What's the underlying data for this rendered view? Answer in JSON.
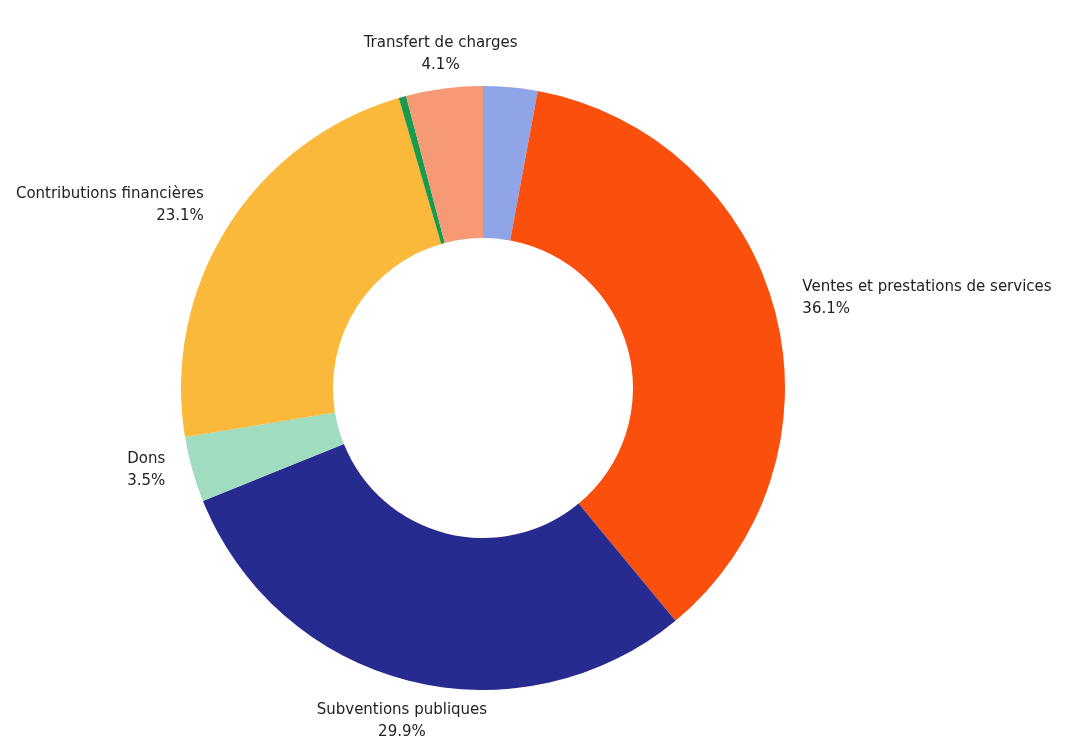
{
  "chart_data": {
    "type": "donut",
    "categories": [
      null,
      "Ventes et prestations de services",
      "Subventions publiques",
      "Dons",
      "Contributions financières",
      null,
      "Transfert de charges"
    ],
    "values": [
      2.9,
      36.1,
      29.9,
      3.5,
      23.1,
      0.4,
      4.1
    ],
    "value_labels": [
      null,
      "36.1%",
      "29.9%",
      "3.5%",
      "23.1%",
      null,
      "4.1%"
    ],
    "colors": [
      "#8fa5e8",
      "#fb4f0e",
      "#272a8e",
      "#9fdcc0",
      "#fbb93c",
      "#1a9a4c",
      "#f59a74"
    ]
  }
}
